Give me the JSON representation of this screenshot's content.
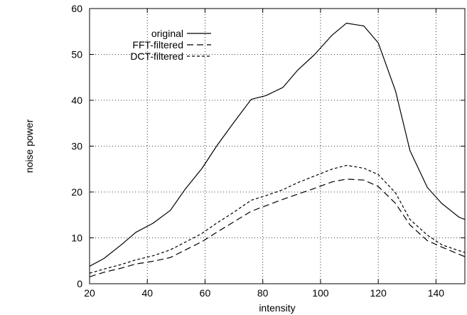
{
  "chart_data": {
    "type": "line",
    "title": "",
    "xlabel": "intensity",
    "ylabel": "noise power",
    "xlim": [
      20,
      150
    ],
    "ylim": [
      0,
      60
    ],
    "xticks": [
      20,
      40,
      60,
      80,
      100,
      120,
      140
    ],
    "yticks": [
      0,
      10,
      20,
      30,
      40,
      50,
      60
    ],
    "grid": true,
    "legend_position": "top-left",
    "series": [
      {
        "name": "original",
        "style": "solid",
        "color": "#000000",
        "x": [
          20,
          25,
          31,
          36,
          42,
          48,
          53,
          59,
          64,
          70,
          76,
          81,
          87,
          92,
          98,
          104,
          109,
          115,
          120,
          126,
          131,
          137,
          142,
          148,
          150
        ],
        "y": [
          3.8,
          5.5,
          8.5,
          11.2,
          13.2,
          16.0,
          20.5,
          25.2,
          30.0,
          35.2,
          40.2,
          41.0,
          42.8,
          46.5,
          50.0,
          54.2,
          56.8,
          56.2,
          52.5,
          42.0,
          29.0,
          21.0,
          17.5,
          14.5,
          14.0
        ]
      },
      {
        "name": "FFT-filtered",
        "style": "long-dash",
        "color": "#000000",
        "x": [
          20,
          25,
          31,
          36,
          42,
          48,
          53,
          59,
          64,
          70,
          76,
          81,
          87,
          92,
          98,
          104,
          109,
          115,
          120,
          126,
          131,
          137,
          142,
          148,
          150
        ],
        "y": [
          1.5,
          2.5,
          3.4,
          4.3,
          4.9,
          5.7,
          7.3,
          9.2,
          11.2,
          13.5,
          15.8,
          17.0,
          18.4,
          19.5,
          20.8,
          22.2,
          22.8,
          22.6,
          21.2,
          17.5,
          12.8,
          9.4,
          8.0,
          6.4,
          5.9
        ]
      },
      {
        "name": "DCT-filtered",
        "style": "short-dash",
        "color": "#000000",
        "x": [
          20,
          25,
          31,
          36,
          42,
          48,
          53,
          59,
          64,
          70,
          76,
          81,
          87,
          92,
          98,
          104,
          109,
          115,
          120,
          126,
          131,
          137,
          142,
          148,
          150
        ],
        "y": [
          2.3,
          3.2,
          4.2,
          5.2,
          6.1,
          7.4,
          9.0,
          11.0,
          13.2,
          15.6,
          18.2,
          19.2,
          20.5,
          22.0,
          23.5,
          25.0,
          25.8,
          25.2,
          23.8,
          19.8,
          14.0,
          10.6,
          8.5,
          7.2,
          6.8
        ]
      }
    ]
  }
}
